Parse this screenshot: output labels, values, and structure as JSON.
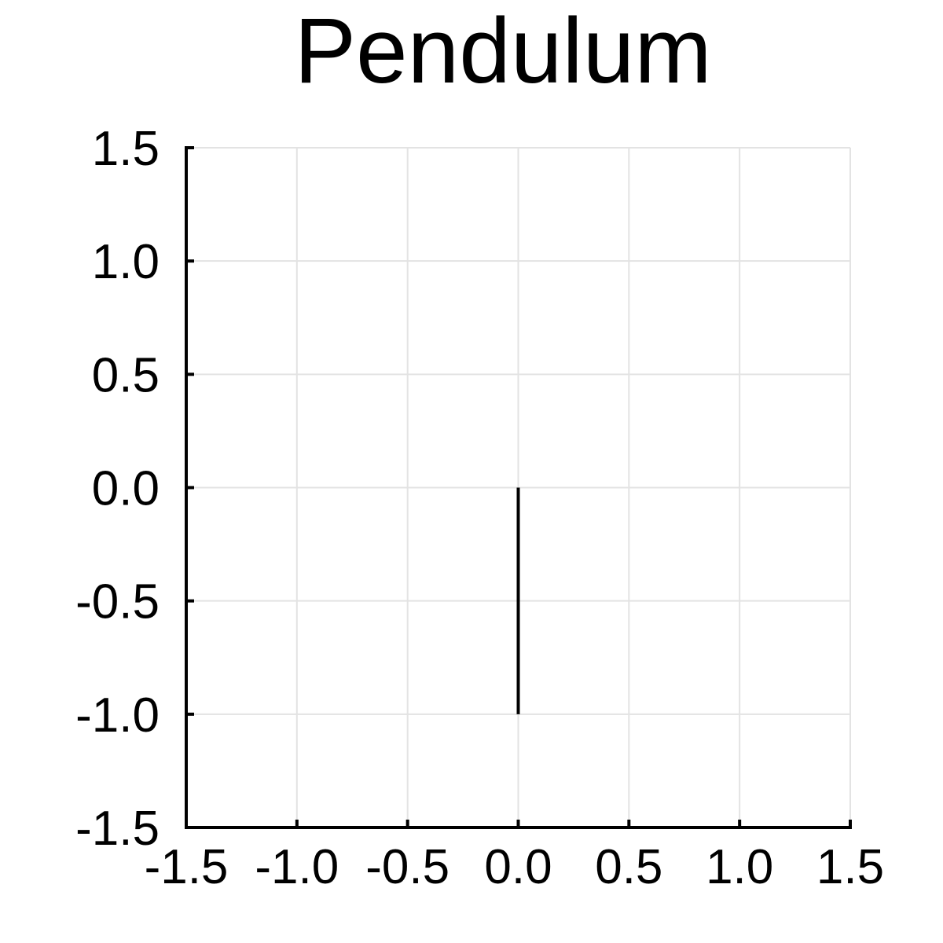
{
  "chart_data": {
    "type": "line",
    "title": "Pendulum",
    "xlabel": "",
    "ylabel": "",
    "xlim": [
      -1.5,
      1.5
    ],
    "ylim": [
      -1.5,
      1.5
    ],
    "xticks": [
      -1.5,
      -1.0,
      -0.5,
      0.0,
      0.5,
      1.0,
      1.5
    ],
    "yticks": [
      -1.5,
      -1.0,
      -0.5,
      0.0,
      0.5,
      1.0,
      1.5
    ],
    "xtick_labels": [
      "-1.5",
      "-1.0",
      "-0.5",
      "0.0",
      "0.5",
      "1.0",
      "1.5"
    ],
    "ytick_labels": [
      "-1.5",
      "-1.0",
      "-0.5",
      "0.0",
      "0.5",
      "1.0",
      "1.5"
    ],
    "grid": true,
    "legend": "none",
    "series": [
      {
        "x": [
          0.0,
          0.0
        ],
        "y": [
          0.0,
          -1.0
        ],
        "color": "#000000"
      }
    ]
  },
  "colors": {
    "grid": "#e3e3e3",
    "axis": "#000000",
    "background": "#ffffff"
  }
}
